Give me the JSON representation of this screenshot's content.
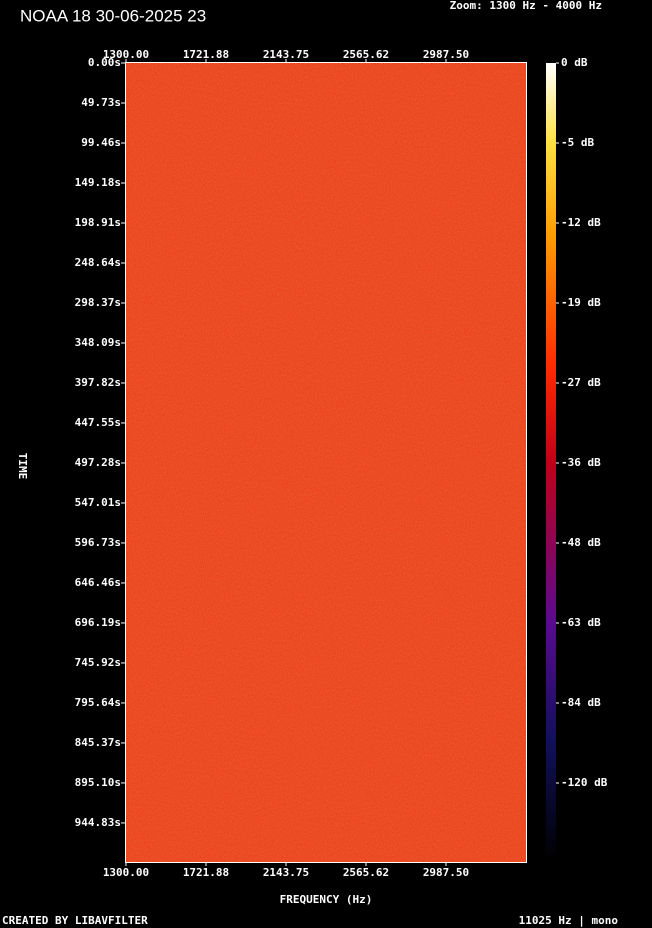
{
  "chart_data": {
    "type": "spectrogram",
    "title": "NOAA 18 30-06-2025 23",
    "subtitle": "Zoom: 1300 Hz - 4000 Hz",
    "x_label": "FREQUENCY (Hz)",
    "y_label": "TIME",
    "footer_left": "CREATED BY LIBAVFILTER",
    "footer_right": "11025 Hz | mono",
    "xlim": [
      1300,
      3409.38
    ],
    "xticks": [
      {
        "value": 1300,
        "label": "1300.00"
      },
      {
        "value": 1721.88,
        "label": "1721.88"
      },
      {
        "value": 2143.75,
        "label": "2143.75"
      },
      {
        "value": 2565.62,
        "label": "2565.62"
      },
      {
        "value": 2987.5,
        "label": "2987.50"
      }
    ],
    "ylim": [
      0,
      993.4
    ],
    "yticks": [
      {
        "value": 0,
        "label": "0.00s"
      },
      {
        "value": 49.73,
        "label": "49.73s"
      },
      {
        "value": 99.46,
        "label": "99.46s"
      },
      {
        "value": 149.18,
        "label": "149.18s"
      },
      {
        "value": 198.91,
        "label": "198.91s"
      },
      {
        "value": 248.64,
        "label": "248.64s"
      },
      {
        "value": 298.37,
        "label": "298.37s"
      },
      {
        "value": 348.09,
        "label": "348.09s"
      },
      {
        "value": 397.82,
        "label": "397.82s"
      },
      {
        "value": 447.55,
        "label": "447.55s"
      },
      {
        "value": 497.28,
        "label": "497.28s"
      },
      {
        "value": 547.01,
        "label": "547.01s"
      },
      {
        "value": 596.73,
        "label": "596.73s"
      },
      {
        "value": 646.46,
        "label": "646.46s"
      },
      {
        "value": 696.19,
        "label": "696.19s"
      },
      {
        "value": 745.92,
        "label": "745.92s"
      },
      {
        "value": 795.64,
        "label": "795.64s"
      },
      {
        "value": 845.37,
        "label": "845.37s"
      },
      {
        "value": 895.1,
        "label": "895.10s"
      },
      {
        "value": 944.83,
        "label": "944.83s"
      }
    ],
    "colorbar_ticks": [
      {
        "value": 0,
        "label": "0 dB"
      },
      {
        "value": -5,
        "label": "-5 dB"
      },
      {
        "value": -12,
        "label": "-12 dB"
      },
      {
        "value": -19,
        "label": "-19 dB"
      },
      {
        "value": -27,
        "label": "-27 dB"
      },
      {
        "value": -36,
        "label": "-36 dB"
      },
      {
        "value": -48,
        "label": "-48 dB"
      },
      {
        "value": -63,
        "label": "-63 dB"
      },
      {
        "value": -84,
        "label": "-84 dB"
      },
      {
        "value": -120,
        "label": "-120 dB"
      }
    ]
  }
}
